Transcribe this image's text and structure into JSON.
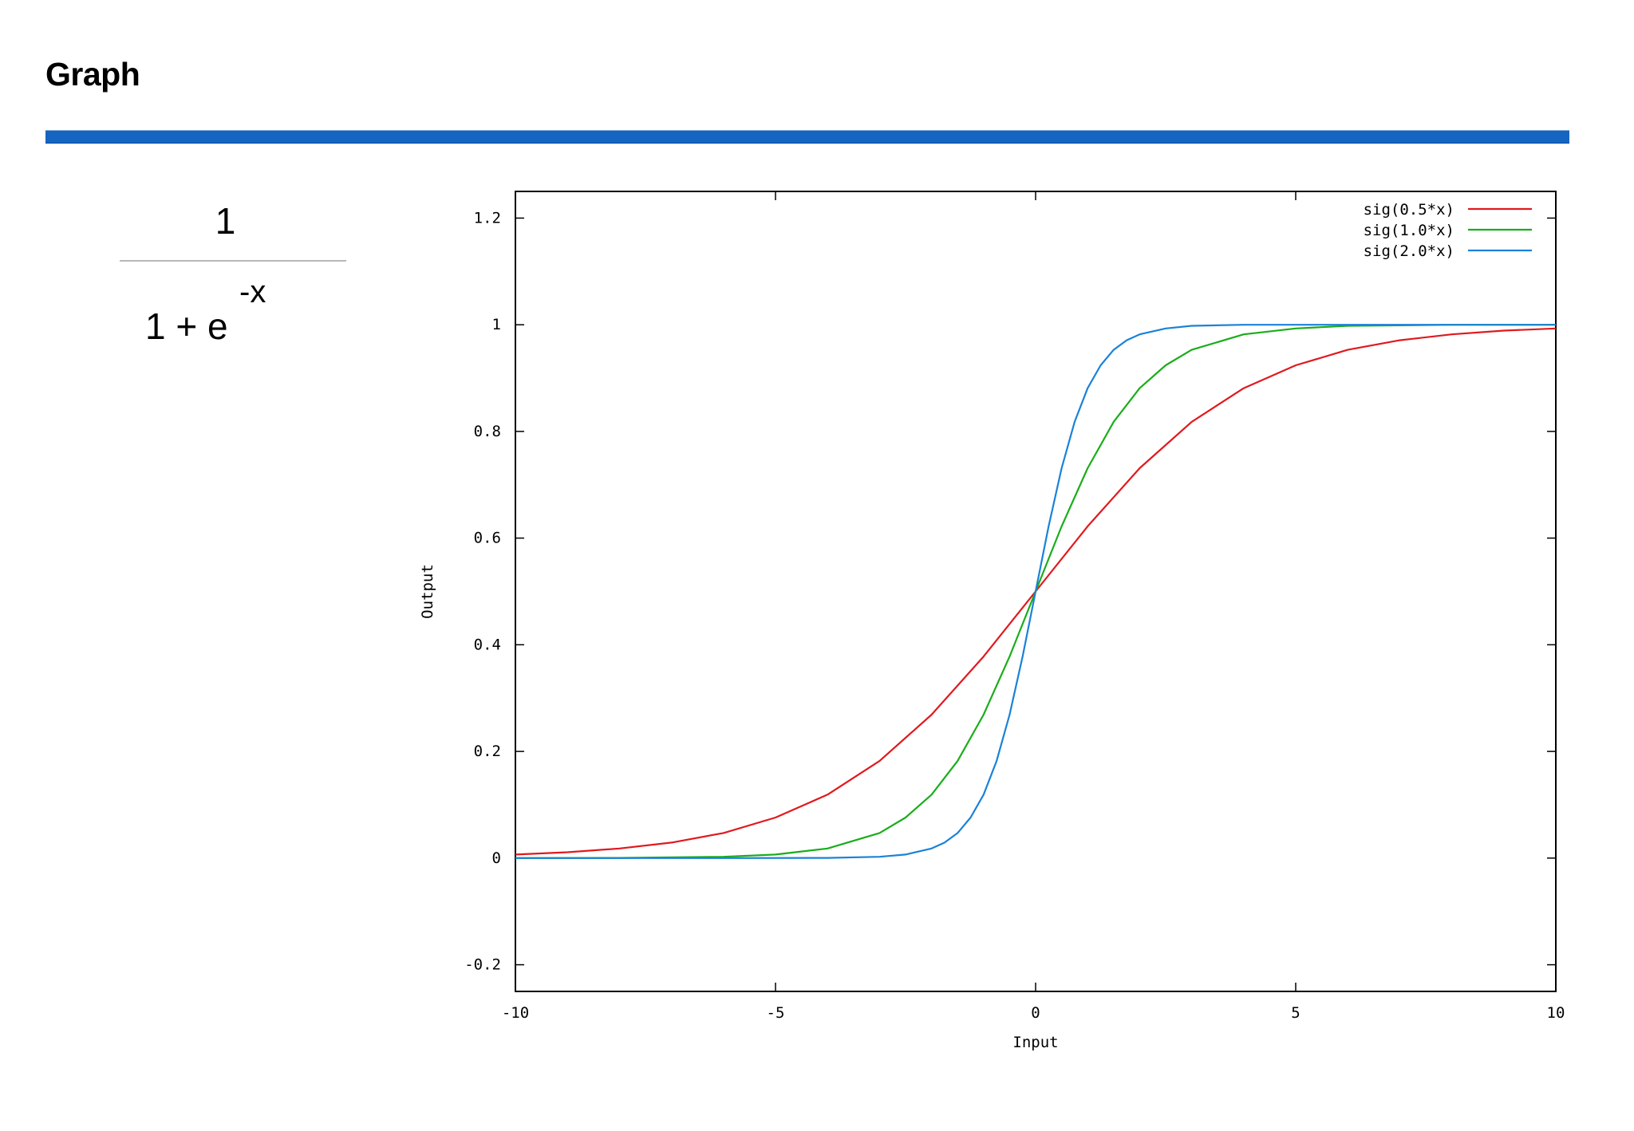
{
  "page": {
    "title": "Graph"
  },
  "formula": {
    "numerator": "1",
    "denominator": "1 + e",
    "exponent": "-x"
  },
  "colors": {
    "accent_bar": "#1565c0",
    "series_red": "#e0191e",
    "series_green": "#1aad1a",
    "series_blue": "#1a82d8"
  },
  "chart_data": {
    "type": "line",
    "title": "",
    "xlabel": "Input",
    "ylabel": "Output",
    "xlim": [
      -10,
      10
    ],
    "ylim": [
      -0.25,
      1.25
    ],
    "xticks": [
      -10,
      -5,
      0,
      5,
      10
    ],
    "xtick_labels": [
      "-10",
      "-5",
      "0",
      "5",
      "10"
    ],
    "yticks": [
      -0.2,
      0,
      0.2,
      0.4,
      0.6,
      0.8,
      1,
      1.2
    ],
    "ytick_labels": [
      "-0.2",
      "0",
      "0.2",
      "0.4",
      "0.6",
      "0.8",
      "1",
      "1.2"
    ],
    "grid": false,
    "legend_position": "top-right",
    "series": [
      {
        "name": "sig(0.5*x)",
        "color": "#e0191e",
        "x": [
          -10,
          -9,
          -8,
          -7,
          -6,
          -5,
          -4,
          -3,
          -2,
          -1,
          0,
          1,
          2,
          3,
          4,
          5,
          6,
          7,
          8,
          9,
          10
        ],
        "y": [
          0.0067,
          0.011,
          0.018,
          0.029,
          0.047,
          0.076,
          0.119,
          0.182,
          0.269,
          0.378,
          0.5,
          0.622,
          0.731,
          0.818,
          0.881,
          0.924,
          0.953,
          0.971,
          0.982,
          0.989,
          0.993
        ]
      },
      {
        "name": "sig(1.0*x)",
        "color": "#1aad1a",
        "x": [
          -10,
          -8,
          -6,
          -5,
          -4,
          -3,
          -2.5,
          -2,
          -1.5,
          -1,
          -0.5,
          0,
          0.5,
          1,
          1.5,
          2,
          2.5,
          3,
          4,
          5,
          6,
          8,
          10
        ],
        "y": [
          0.0,
          0.0003,
          0.0025,
          0.0067,
          0.018,
          0.047,
          0.076,
          0.119,
          0.182,
          0.269,
          0.378,
          0.5,
          0.622,
          0.731,
          0.818,
          0.881,
          0.924,
          0.953,
          0.982,
          0.993,
          0.998,
          1.0,
          1.0
        ]
      },
      {
        "name": "sig(2.0*x)",
        "color": "#1a82d8",
        "x": [
          -10,
          -6,
          -4,
          -3,
          -2.5,
          -2,
          -1.75,
          -1.5,
          -1.25,
          -1,
          -0.75,
          -0.5,
          -0.25,
          0,
          0.25,
          0.5,
          0.75,
          1,
          1.25,
          1.5,
          1.75,
          2,
          2.5,
          3,
          4,
          6,
          10
        ],
        "y": [
          0.0,
          0.0,
          0.0003,
          0.0025,
          0.0067,
          0.018,
          0.029,
          0.047,
          0.076,
          0.119,
          0.182,
          0.269,
          0.378,
          0.5,
          0.622,
          0.731,
          0.818,
          0.881,
          0.924,
          0.953,
          0.971,
          0.982,
          0.993,
          0.998,
          1.0,
          1.0,
          1.0
        ]
      }
    ]
  }
}
